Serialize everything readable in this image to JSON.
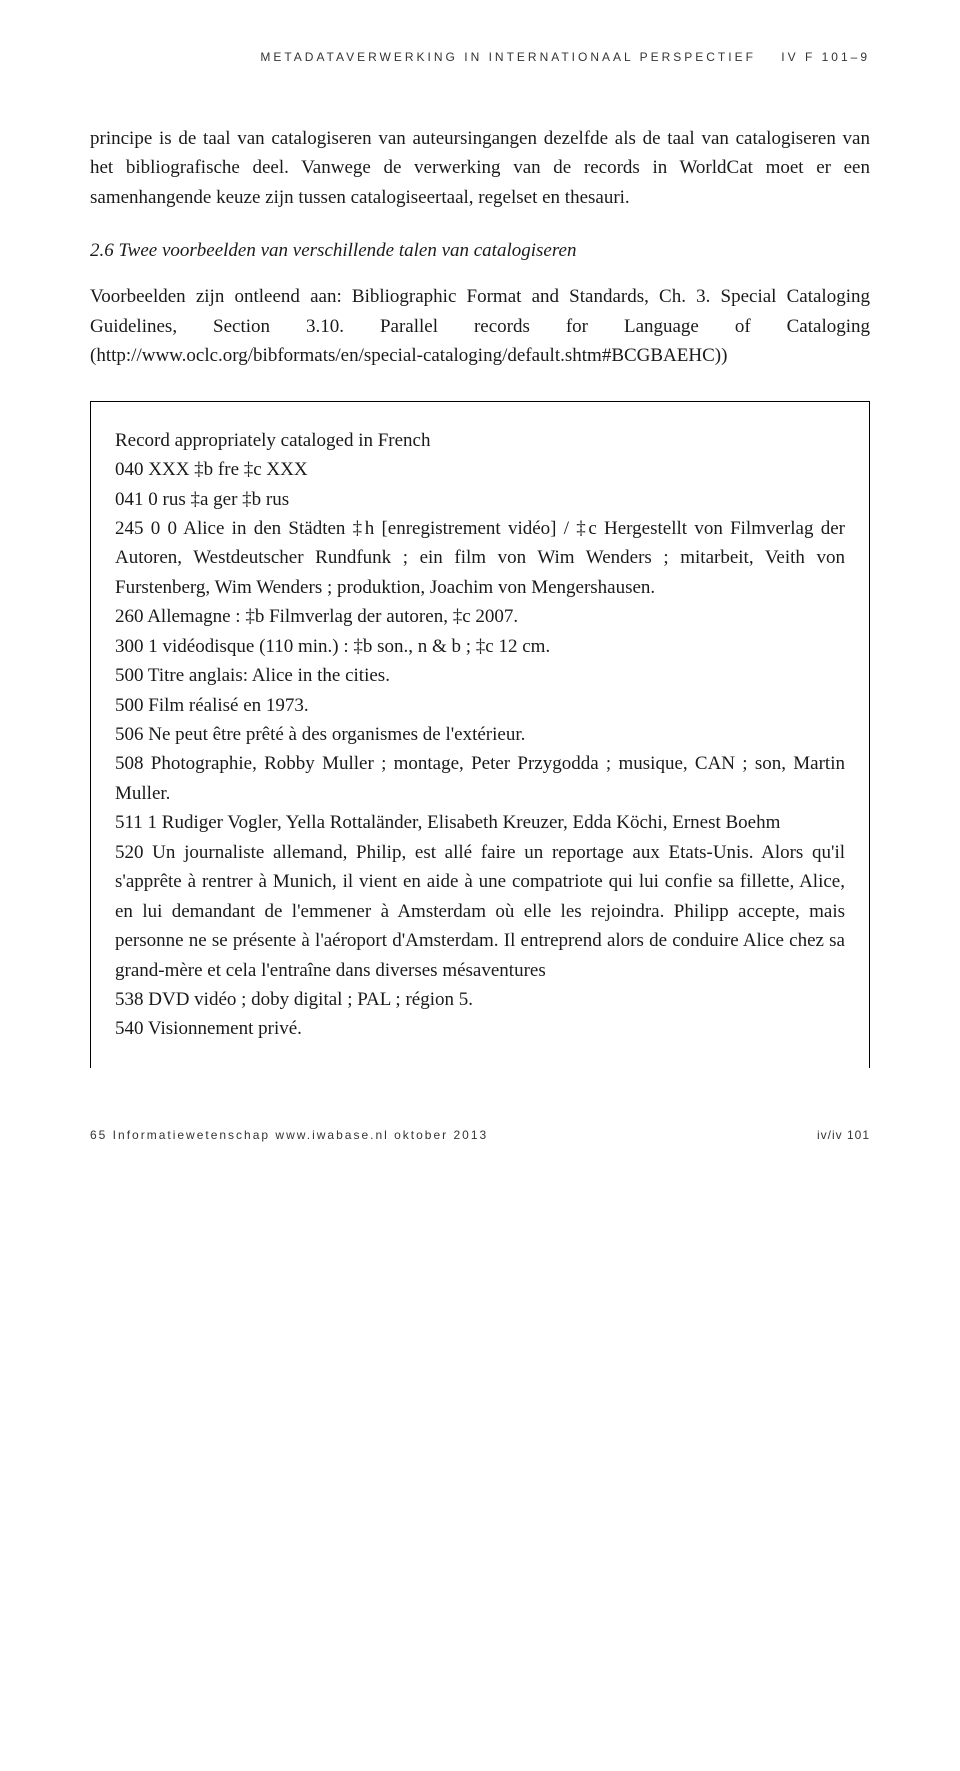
{
  "header": {
    "running_title": "METADATAVERWERKING IN INTERNATIONAAL PERSPECTIEF",
    "section_code": "IV F 101–9"
  },
  "paragraphs": {
    "p1": "principe is de taal van catalogiseren van auteursingangen dezelfde als de taal van catalogiseren van het bibliografische deel. Vanwege de verwerking van de records in WorldCat moet er een samenhangende keuze zijn tussen catalogiseertaal, regelset en thesauri.",
    "heading": "2.6 Twee voorbeelden van verschillende talen van catalogiseren",
    "p2": "Voorbeelden zijn ontleend aan: Bibliographic Format and Standards, Ch. 3. Special Cataloging Guidelines, Section 3.10. Parallel records for Language of Cataloging (http://www.oclc.org/bibformats/en/special-cataloging/default.shtm#BCGBAEHC))"
  },
  "record": {
    "title": "Record appropriately cataloged in French",
    "lines": [
      "040 XXX ‡b fre ‡c XXX",
      "041 0 rus ‡a ger ‡b rus",
      "245 0 0 Alice in den Städten ‡h [enregistrement vidéo] / ‡c Hergestellt von Filmverlag der Autoren, Westdeutscher Rundfunk ; ein film von Wim Wenders ; mitarbeit, Veith von Furstenberg, Wim Wenders ; produktion, Joachim von Mengershausen.",
      "260 Allemagne : ‡b Filmverlag der autoren, ‡c 2007.",
      "300 1 vidéodisque (110 min.) : ‡b son., n & b ; ‡c 12 cm.",
      "500 Titre anglais: Alice in the cities.",
      "500 Film réalisé en 1973.",
      "506 Ne peut être prêté à des organismes de l'extérieur.",
      "508 Photographie, Robby Muller ; montage, Peter Przygodda ; musique, CAN ; son, Martin Muller.",
      "511 1 Rudiger Vogler, Yella Rottaländer, Elisabeth Kreuzer, Edda Köchi, Ernest Boehm",
      "520 Un journaliste allemand, Philip, est allé faire un reportage aux Etats-Unis. Alors qu'il s'apprête à rentrer à Munich, il vient en aide à une compatriote qui lui confie sa fillette, Alice, en lui demandant de l'emmener à Amsterdam où elle les rejoindra. Philipp accepte, mais personne ne se présente à l'aéroport d'Amsterdam. Il entreprend alors de conduire Alice chez sa grand-mère et cela l'entraîne dans diverses mésaventures",
      "538 DVD vidéo ; doby digital ; PAL ; région 5.",
      "540 Visionnement privé."
    ]
  },
  "footer": {
    "left": "65  Informatiewetenschap   www.iwabase.nl   oktober 2013",
    "right": "iv/iv 101"
  }
}
